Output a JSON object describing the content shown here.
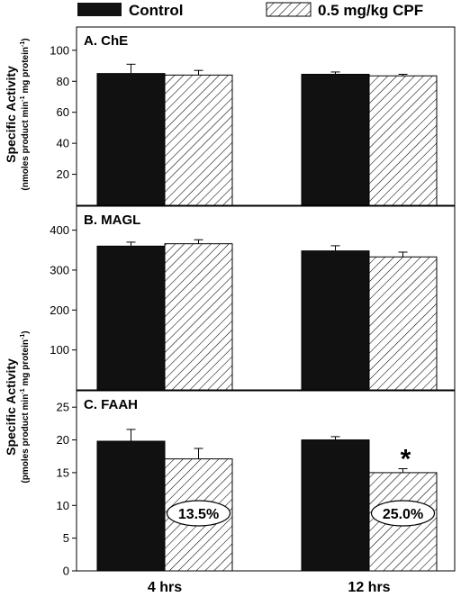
{
  "legend": {
    "control": "Control",
    "cpf": "0.5 mg/kg CPF"
  },
  "ylabels": {
    "top_main": "Specific Activity",
    "top_sub_a": "(nmoles product min",
    "top_sub_b": " mg protein",
    "top_sub_c": ")",
    "bottom_main": "Specific Activity",
    "bottom_sub_a": "(pmoles product min",
    "bottom_sub_b": " mg protein",
    "bottom_sub_c": ")",
    "exponent": "-1"
  },
  "colors": {
    "control": "#111111",
    "cpf": "#ffffff",
    "axis": "#000000"
  },
  "chart_data": [
    {
      "type": "bar",
      "title": "A. ChE",
      "categories": [
        "4 hrs",
        "12 hrs"
      ],
      "ylim": [
        0,
        115
      ],
      "yticks": [
        20,
        40,
        60,
        80,
        100
      ],
      "series": [
        {
          "name": "Control",
          "values": [
            85,
            84.5
          ],
          "errors": [
            6,
            1.5
          ]
        },
        {
          "name": "0.5 mg/kg CPF",
          "values": [
            84,
            83.5
          ],
          "errors": [
            3,
            1
          ]
        }
      ]
    },
    {
      "type": "bar",
      "title": "B. MAGL",
      "categories": [
        "4 hrs",
        "12 hrs"
      ],
      "ylim": [
        0,
        460
      ],
      "yticks": [
        100,
        200,
        300,
        400
      ],
      "series": [
        {
          "name": "Control",
          "values": [
            360,
            348
          ],
          "errors": [
            10,
            13
          ]
        },
        {
          "name": "0.5 mg/kg CPF",
          "values": [
            366,
            333
          ],
          "errors": [
            10,
            12
          ]
        }
      ]
    },
    {
      "type": "bar",
      "title": "C. FAAH",
      "categories": [
        "4 hrs",
        "12 hrs"
      ],
      "ylim": [
        0,
        27.5
      ],
      "yticks": [
        0,
        5,
        10,
        15,
        20,
        25
      ],
      "series": [
        {
          "name": "Control",
          "values": [
            19.8,
            20
          ],
          "errors": [
            1.8,
            0.5
          ]
        },
        {
          "name": "0.5 mg/kg CPF",
          "values": [
            17.1,
            15
          ],
          "errors": [
            1.6,
            0.6
          ]
        }
      ],
      "annotations": {
        "percent": [
          "13.5%",
          "25.0%"
        ],
        "significance": [
          "",
          "*"
        ]
      }
    }
  ]
}
